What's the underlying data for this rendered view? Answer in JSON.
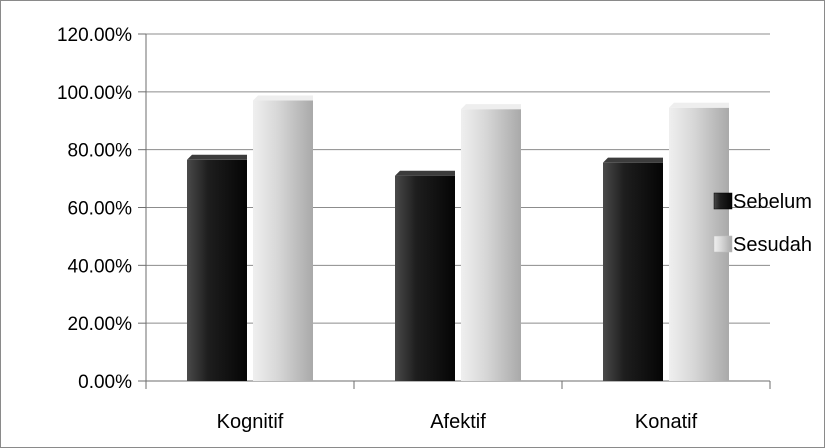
{
  "chart_data": {
    "type": "bar",
    "categories": [
      "Kognitif",
      "Afektif",
      "Konatif"
    ],
    "series": [
      {
        "name": "Sebelum",
        "values": [
          76.5,
          71.0,
          75.5
        ],
        "color": "#1a1a1a"
      },
      {
        "name": "Sesudah",
        "values": [
          97.0,
          94.0,
          94.5
        ],
        "color": "#d4d4d4"
      }
    ],
    "yticks": [
      "0.00%",
      "20.00%",
      "40.00%",
      "60.00%",
      "80.00%",
      "100.00%",
      "120.00%"
    ],
    "ylim": [
      0,
      120
    ],
    "grid": true,
    "legend_position": "right",
    "style": "3d-bar"
  }
}
